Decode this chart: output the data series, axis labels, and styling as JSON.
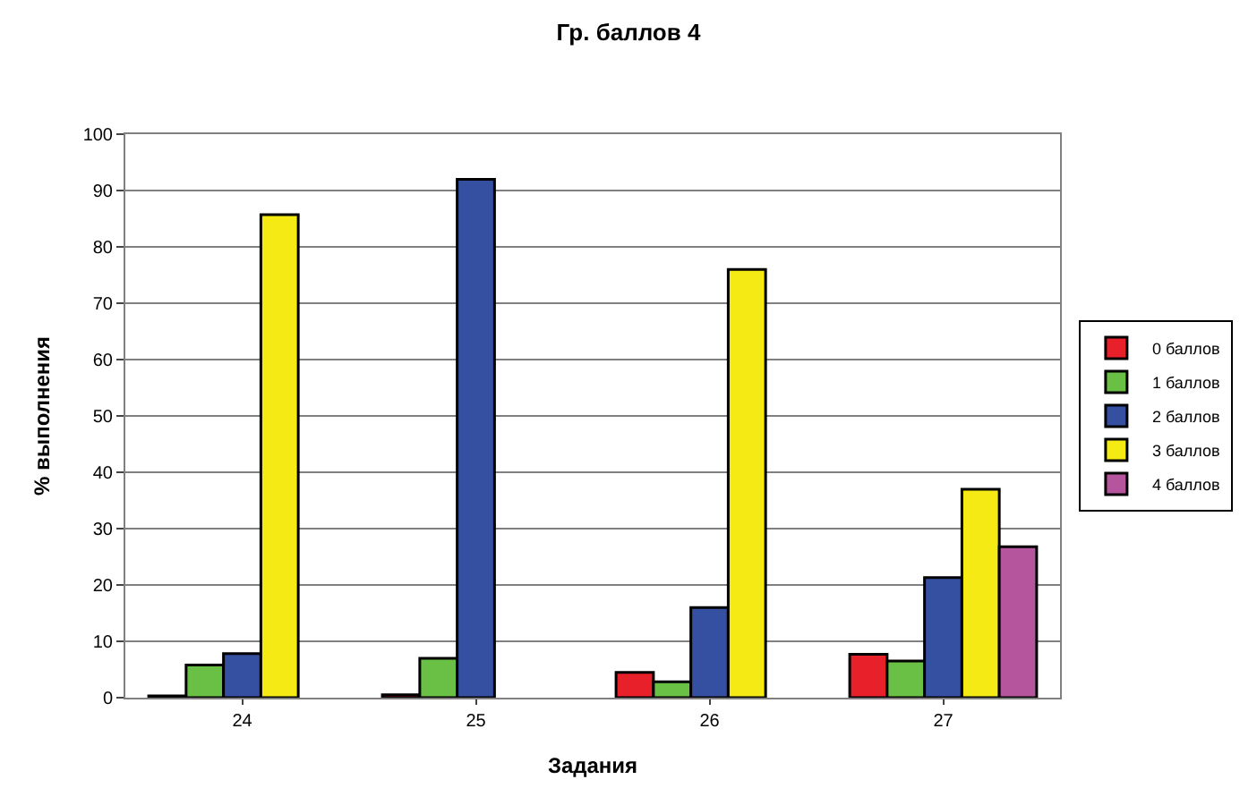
{
  "chart_data": {
    "type": "bar",
    "title": "Гр. баллов 4",
    "xlabel": "Задания",
    "ylabel": "% выполнения",
    "categories": [
      "24",
      "25",
      "26",
      "27"
    ],
    "series": [
      {
        "name": "0 баллов",
        "color": "#e8202a",
        "values": [
          0.3,
          0.5,
          4.5,
          7.7
        ]
      },
      {
        "name": "1 баллов",
        "color": "#6abf45",
        "values": [
          5.8,
          7,
          2.8,
          6.5
        ]
      },
      {
        "name": "2 баллов",
        "color": "#3550a0",
        "values": [
          7.8,
          92,
          16,
          21.3
        ]
      },
      {
        "name": "3 баллов",
        "color": "#f5ea14",
        "values": [
          85.7,
          null,
          76,
          37
        ]
      },
      {
        "name": "4 баллов",
        "color": "#b5559e",
        "values": [
          null,
          null,
          null,
          26.8
        ]
      }
    ],
    "ylim": [
      0,
      100
    ],
    "yticks": [
      0,
      10,
      20,
      30,
      40,
      50,
      60,
      70,
      80,
      90,
      100
    ],
    "grid": "y",
    "legend": "right"
  }
}
